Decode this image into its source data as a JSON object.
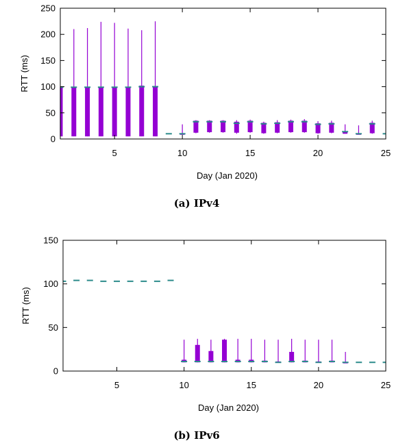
{
  "chart_data": [
    {
      "type": "candlestick",
      "caption": "(a) IPv4",
      "xlabel": "Day (Jan 2020)",
      "ylabel": "RTT (ms)",
      "xlim": [
        1,
        25
      ],
      "ylim": [
        0,
        250
      ],
      "x_ticks": [
        5,
        10,
        15,
        20,
        25
      ],
      "y_ticks": [
        0,
        50,
        100,
        150,
        200,
        250
      ],
      "grid": false,
      "colors": {
        "box": "#9400d3",
        "median": "#2a8a8a"
      },
      "data": [
        {
          "day": 1,
          "min": 5,
          "q1": 5,
          "median": 99,
          "q3": 100,
          "max": 100
        },
        {
          "day": 2,
          "min": 5,
          "q1": 5,
          "median": 99,
          "q3": 100,
          "max": 210
        },
        {
          "day": 3,
          "min": 5,
          "q1": 5,
          "median": 99,
          "q3": 100,
          "max": 212
        },
        {
          "day": 4,
          "min": 5,
          "q1": 5,
          "median": 99,
          "q3": 100,
          "max": 224
        },
        {
          "day": 5,
          "min": 5,
          "q1": 5,
          "median": 99,
          "q3": 100,
          "max": 222
        },
        {
          "day": 6,
          "min": 5,
          "q1": 5,
          "median": 99,
          "q3": 100,
          "max": 211
        },
        {
          "day": 7,
          "min": 5,
          "q1": 5,
          "median": 100,
          "q3": 102,
          "max": 208
        },
        {
          "day": 8,
          "min": 5,
          "q1": 5,
          "median": 100,
          "q3": 101,
          "max": 225
        },
        {
          "day": 9,
          "median": 10
        },
        {
          "day": 10,
          "min": 10,
          "q1": 10,
          "median": 10,
          "q3": 10,
          "max": 28
        },
        {
          "day": 11,
          "min": 11,
          "q1": 12,
          "median": 33,
          "q3": 35,
          "max": 36
        },
        {
          "day": 12,
          "min": 12,
          "q1": 13,
          "median": 33,
          "q3": 35,
          "max": 36
        },
        {
          "day": 13,
          "min": 12,
          "q1": 13,
          "median": 33,
          "q3": 35,
          "max": 36
        },
        {
          "day": 14,
          "min": 10,
          "q1": 12,
          "median": 30,
          "q3": 33,
          "max": 36
        },
        {
          "day": 15,
          "min": 12,
          "q1": 13,
          "median": 33,
          "q3": 35,
          "max": 37
        },
        {
          "day": 16,
          "min": 10,
          "q1": 11,
          "median": 29,
          "q3": 31,
          "max": 33
        },
        {
          "day": 17,
          "min": 11,
          "q1": 12,
          "median": 30,
          "q3": 32,
          "max": 36
        },
        {
          "day": 18,
          "min": 12,
          "q1": 13,
          "median": 33,
          "q3": 35,
          "max": 37
        },
        {
          "day": 19,
          "min": 12,
          "q1": 13,
          "median": 33,
          "q3": 35,
          "max": 38
        },
        {
          "day": 20,
          "min": 10,
          "q1": 11,
          "median": 28,
          "q3": 30,
          "max": 34
        },
        {
          "day": 21,
          "min": 11,
          "q1": 12,
          "median": 29,
          "q3": 31,
          "max": 35
        },
        {
          "day": 22,
          "min": 10,
          "q1": 10,
          "median": 14,
          "q3": 15,
          "max": 28
        },
        {
          "day": 23,
          "min": 10,
          "q1": 10,
          "median": 10,
          "q3": 10,
          "max": 26
        },
        {
          "day": 24,
          "min": 10,
          "q1": 11,
          "median": 29,
          "q3": 31,
          "max": 35
        },
        {
          "day": 25,
          "median": 10
        }
      ]
    },
    {
      "type": "candlestick",
      "caption": "(b) IPv6",
      "xlabel": "Day (Jan 2020)",
      "ylabel": "RTT (ms)",
      "xlim": [
        1,
        25
      ],
      "ylim": [
        0,
        150
      ],
      "x_ticks": [
        5,
        10,
        15,
        20,
        25
      ],
      "y_ticks": [
        0,
        50,
        100,
        150
      ],
      "grid": false,
      "colors": {
        "box": "#9400d3",
        "median": "#2a8a8a"
      },
      "data": [
        {
          "day": 1,
          "median": 103
        },
        {
          "day": 2,
          "median": 104
        },
        {
          "day": 3,
          "median": 104
        },
        {
          "day": 4,
          "median": 103
        },
        {
          "day": 5,
          "median": 103
        },
        {
          "day": 6,
          "median": 103
        },
        {
          "day": 7,
          "median": 103
        },
        {
          "day": 8,
          "median": 103
        },
        {
          "day": 9,
          "median": 104
        },
        {
          "day": 10,
          "min": 10,
          "q1": 10,
          "median": 11,
          "q3": 13,
          "max": 36
        },
        {
          "day": 11,
          "min": 10,
          "q1": 10,
          "median": 11,
          "q3": 30,
          "max": 37
        },
        {
          "day": 12,
          "min": 10,
          "q1": 10,
          "median": 11,
          "q3": 23,
          "max": 36
        },
        {
          "day": 13,
          "min": 10,
          "q1": 10,
          "median": 11,
          "q3": 36,
          "max": 37
        },
        {
          "day": 14,
          "min": 10,
          "q1": 10,
          "median": 11,
          "q3": 13,
          "max": 37
        },
        {
          "day": 15,
          "min": 10,
          "q1": 10,
          "median": 11,
          "q3": 13,
          "max": 37
        },
        {
          "day": 16,
          "min": 10,
          "q1": 10,
          "median": 11,
          "q3": 12,
          "max": 36
        },
        {
          "day": 17,
          "min": 10,
          "q1": 10,
          "median": 10,
          "q3": 11,
          "max": 36
        },
        {
          "day": 18,
          "min": 10,
          "q1": 10,
          "median": 11,
          "q3": 22,
          "max": 37
        },
        {
          "day": 19,
          "min": 10,
          "q1": 10,
          "median": 11,
          "q3": 12,
          "max": 36
        },
        {
          "day": 20,
          "min": 10,
          "q1": 10,
          "median": 10,
          "q3": 11,
          "max": 36
        },
        {
          "day": 21,
          "min": 10,
          "q1": 10,
          "median": 11,
          "q3": 12,
          "max": 36
        },
        {
          "day": 22,
          "min": 10,
          "q1": 10,
          "median": 10,
          "q3": 10,
          "max": 22
        },
        {
          "day": 23,
          "median": 10
        },
        {
          "day": 24,
          "median": 10
        },
        {
          "day": 25,
          "median": 10
        }
      ]
    }
  ]
}
